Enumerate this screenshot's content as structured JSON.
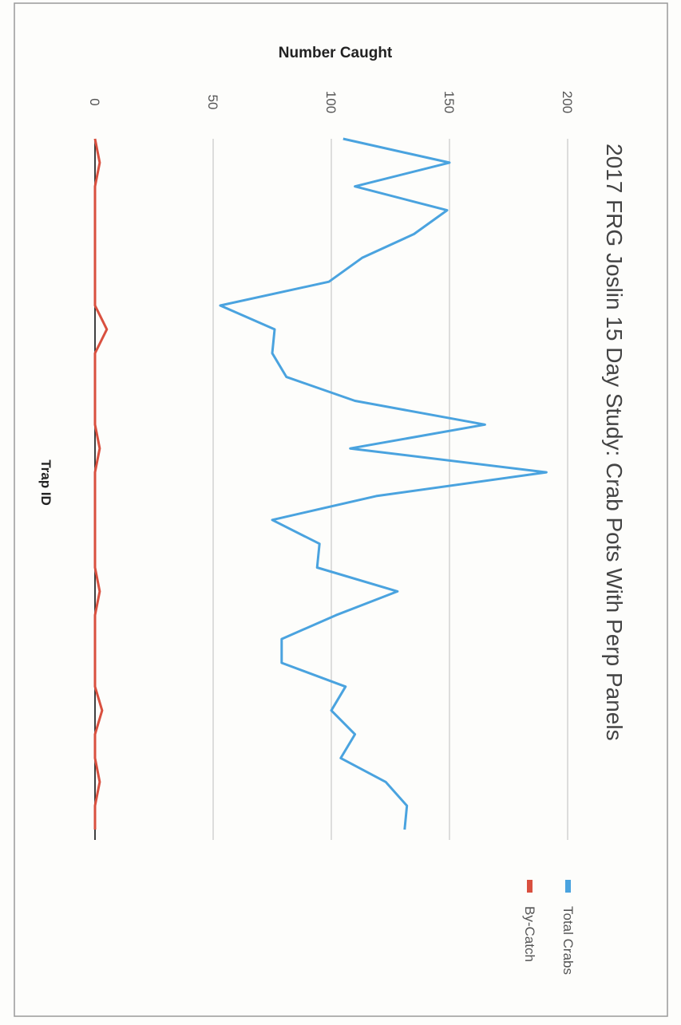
{
  "chart_data": {
    "type": "line",
    "title": "2017 FRG Joslin 15 Day Study: Crab Pots With Perp Panels",
    "xlabel": "Trap ID",
    "ylabel": "Number Caught",
    "ylim": [
      0,
      200
    ],
    "yticks": [
      "0",
      "50",
      "100",
      "150",
      "200"
    ],
    "grid": true,
    "legend_position": "right",
    "series": [
      {
        "name": "Total Crabs",
        "color": "#4aa3df",
        "values": [
          105,
          150,
          110,
          149,
          135,
          113,
          99,
          53,
          76,
          75,
          81,
          110,
          165,
          108,
          191,
          119,
          75,
          95,
          94,
          128,
          102,
          79,
          79,
          106,
          100,
          110,
          104,
          123,
          132,
          131
        ]
      },
      {
        "name": "By-Catch",
        "color": "#d9503f",
        "values": [
          0,
          2,
          0,
          0,
          0,
          0,
          0,
          0,
          5,
          0,
          0,
          0,
          0,
          2,
          0,
          0,
          0,
          0,
          0,
          2,
          0,
          0,
          0,
          0,
          3,
          0,
          0,
          2,
          0,
          0
        ]
      }
    ]
  }
}
